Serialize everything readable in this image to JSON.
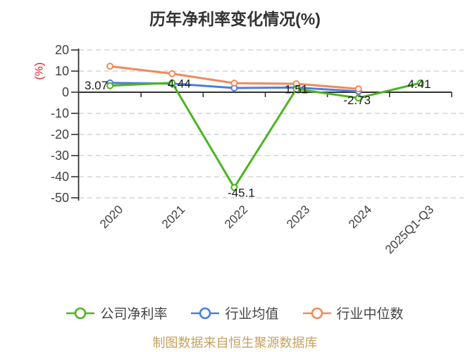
{
  "title": "历年净利率变化情况(%)",
  "source_note": "制图数据来自恒生聚源数据库",
  "chart_data": {
    "type": "line",
    "title": "历年净利率变化情况(%)",
    "categories": [
      "2020",
      "2021",
      "2022",
      "2023",
      "2024",
      "2025Q1-Q3"
    ],
    "y_axis": {
      "name": "(%)",
      "min": -50,
      "max": 20,
      "ticks": [
        20,
        10,
        0,
        -10,
        -20,
        -30,
        -40,
        -50
      ]
    },
    "grid": "horizontal dashed gridlines, solid zero axis",
    "legend_position": "bottom",
    "series": [
      {
        "name": "公司净利率",
        "color": "#4cb422",
        "values": [
          3.07,
          4.44,
          -45.1,
          1.51,
          -2.73,
          4.41
        ],
        "point_labels": [
          "3.07",
          "4.44",
          "-45.1",
          "1.51",
          "-2.73",
          "4.41"
        ]
      },
      {
        "name": "行业均值",
        "color": "#4d7dde",
        "values": [
          4.4,
          4.1,
          2.0,
          2.2,
          0.4,
          null
        ]
      },
      {
        "name": "行业中位数",
        "color": "#f0895a",
        "values": [
          12.3,
          8.8,
          4.3,
          4.0,
          1.6,
          null
        ]
      }
    ]
  },
  "colors": {
    "axis": "#333333",
    "tick_label": "#404040",
    "grid": "#cccccc",
    "data_label": "#1a1a1a",
    "axis_name": "#e22424",
    "legend_text": "#444444",
    "footer": "#c5a15d",
    "title": "#333333",
    "background": "#ffffff"
  }
}
